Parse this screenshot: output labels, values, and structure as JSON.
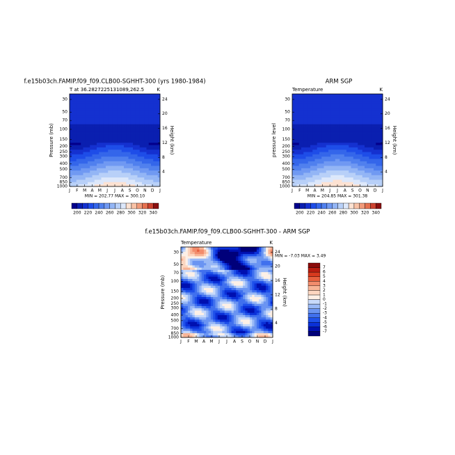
{
  "chart_data": [
    {
      "type": "contour",
      "field": "temperature",
      "title": "f.e15b03ch.FAMIP.f09_f09.CLB00-SGHHT-300 (yrs 1980-1984)",
      "subtitle_left": "T at 36.2827225131089,262.5",
      "subtitle_right": "K",
      "ylabel": "Pressure (mb)",
      "y2label": "Height (km)",
      "stats": "MIN = 202.77  MAX = 300.10",
      "categories": [
        "J",
        "F",
        "M",
        "A",
        "M",
        "J",
        "J",
        "A",
        "S",
        "O",
        "N",
        "D",
        "J"
      ],
      "ylim": [
        1000,
        24
      ],
      "log_y": true,
      "yticks": [
        30,
        50,
        70,
        100,
        150,
        200,
        250,
        300,
        400,
        500,
        700,
        850,
        1000
      ],
      "y2lim": [
        0,
        25.5
      ],
      "y2ticks": [
        4,
        8,
        12,
        16,
        20,
        24
      ],
      "colorbar": {
        "orientation": "horizontal",
        "lim": [
          190,
          350
        ],
        "ticks": [
          200,
          220,
          240,
          260,
          280,
          300,
          320,
          340
        ],
        "colors": [
          "#03008c",
          "#0a1fb0",
          "#1431d0",
          "#1e4de8",
          "#3466ea",
          "#5080ee",
          "#7099f2",
          "#93b5f5",
          "#b8d0f8",
          "#dde8fb",
          "#fde2d2",
          "#f9c2a6",
          "#f19a7a",
          "#e5704f",
          "#cc4330",
          "#8a1010"
        ]
      }
    },
    {
      "type": "contour",
      "field": "temperature",
      "title": "ARM SGP",
      "subtitle_left": "Temperature",
      "subtitle_right": "K",
      "ylabel": "pressure level",
      "y2label": "Height (km)",
      "stats": "MIN = 204.85  MAX = 301.38",
      "categories": [
        "J",
        "F",
        "M",
        "A",
        "M",
        "J",
        "J",
        "A",
        "S",
        "O",
        "N",
        "D",
        "J"
      ],
      "ylim": [
        1000,
        24
      ],
      "log_y": true,
      "yticks": [
        30,
        50,
        70,
        100,
        150,
        200,
        250,
        300,
        400,
        500,
        700,
        850,
        1000
      ],
      "y2lim": [
        0,
        25.5
      ],
      "y2ticks": [
        4,
        8,
        12,
        16,
        20,
        24
      ],
      "colorbar": {
        "orientation": "horizontal",
        "lim": [
          190,
          350
        ],
        "ticks": [
          200,
          220,
          240,
          260,
          280,
          300,
          320,
          340
        ],
        "colors": [
          "#03008c",
          "#0a1fb0",
          "#1431d0",
          "#1e4de8",
          "#3466ea",
          "#5080ee",
          "#7099f2",
          "#93b5f5",
          "#b8d0f8",
          "#dde8fb",
          "#fde2d2",
          "#f9c2a6",
          "#f19a7a",
          "#e5704f",
          "#cc4330",
          "#8a1010"
        ]
      }
    },
    {
      "type": "contour",
      "field": "difference",
      "title": "f.e15b03ch.FAMIP.f09_f09.CLB00-SGHHT-300 - ARM SGP",
      "subtitle_left": "Temperature",
      "subtitle_right": "K",
      "ylabel": "Pressure (mb)",
      "y2label": "Height (km)",
      "stats": "MIN =  -7.03 MAX =    3.49",
      "categories": [
        "J",
        "F",
        "M",
        "A",
        "M",
        "J",
        "J",
        "A",
        "S",
        "O",
        "N",
        "D",
        "J"
      ],
      "ylim": [
        1000,
        24
      ],
      "log_y": true,
      "yticks": [
        30,
        50,
        70,
        100,
        150,
        200,
        250,
        300,
        400,
        500,
        700,
        850,
        1000
      ],
      "y2lim": [
        0,
        25.5
      ],
      "y2ticks": [
        4,
        8,
        12,
        16,
        20,
        24
      ],
      "colorbar": {
        "orientation": "vertical",
        "lim": [
          -8,
          8
        ],
        "ticks": [
          7,
          6,
          5,
          4,
          3,
          2,
          1,
          0,
          -1,
          -2,
          -3,
          -4,
          -5,
          -6,
          -7
        ],
        "colors": [
          "#00007a",
          "#0010b0",
          "#0a30d8",
          "#1e50ea",
          "#4070ee",
          "#6a94f2",
          "#98b8f6",
          "#c8dafa",
          "#fdf0e6",
          "#fcd6c0",
          "#f8b496",
          "#f28c6c",
          "#e8603e",
          "#d83a1e",
          "#b81c10",
          "#8a0a0a"
        ]
      }
    }
  ]
}
